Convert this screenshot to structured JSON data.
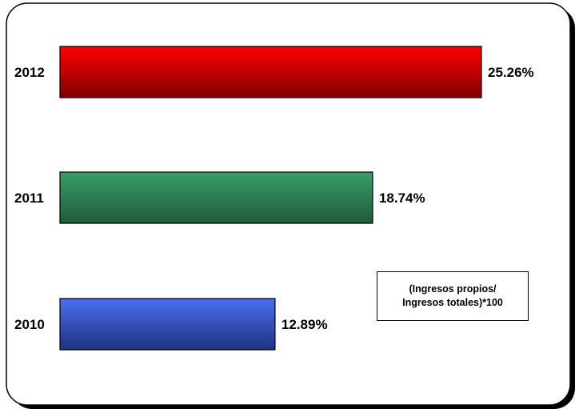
{
  "chart_data": {
    "type": "bar",
    "orientation": "horizontal",
    "categories": [
      "2012",
      "2011",
      "2010"
    ],
    "values": [
      25.26,
      18.74,
      12.89
    ],
    "value_labels": [
      "25.26%",
      "18.74%",
      "12.89%"
    ],
    "colors": [
      "#cc0000",
      "#2e8b57",
      "#3355cc"
    ],
    "xlim": [
      0,
      30
    ],
    "grid": false,
    "legend": "none",
    "title": "",
    "xlabel": "",
    "ylabel": "",
    "annotation": {
      "line1": "(Ingresos propios/",
      "line2": "Ingresos totales)*100"
    }
  }
}
